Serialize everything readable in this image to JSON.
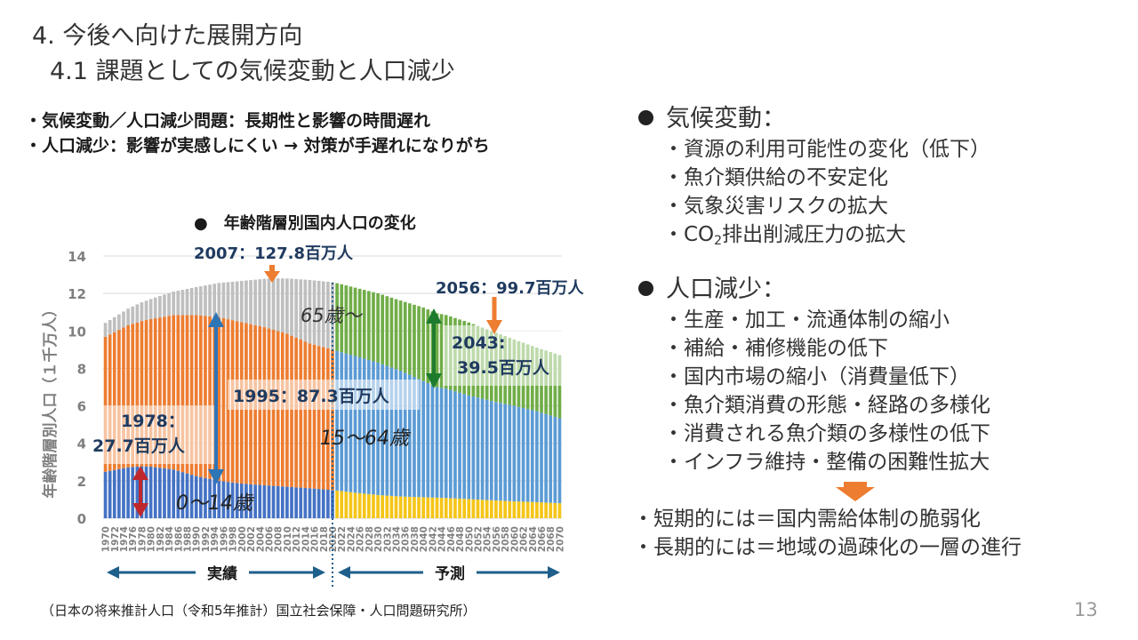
{
  "header": {
    "title": "4. 今後へ向けた展開方向",
    "subtitle": "4.1 課題としての気候変動と人口減少"
  },
  "left_bullets": [
    "・気候変動／人口減少問題：長期性と影響の時間遅れ",
    "・人口減少：影響が実感しにくい → 対策が手遅れになりがち"
  ],
  "chart_data": {
    "type": "bar",
    "stacked": true,
    "title": "●　年齢階層別国内人口の変化",
    "ylabel": "年齢階層別人口（１千万人）",
    "ylim": [
      0,
      14
    ],
    "yticks": [
      0,
      2,
      4,
      6,
      8,
      10,
      12,
      14
    ],
    "x_start": 1970,
    "x_end": 2070,
    "x_tick_step": 2,
    "projection_start": 2021,
    "colors": {
      "actual_0_14": "#4472c4",
      "actual_15_64": "#ed7d31",
      "actual_65": "#bfbfbf",
      "proj_0_14": "#f5c518",
      "proj_15_64": "#5b9bd5",
      "proj_65": "#70ad47",
      "arrow_red": "#c0282d",
      "arrow_blue": "#2e75b6",
      "arrow_green": "#1e7b2e",
      "arrow_orange": "#ed7d31",
      "period_arrow": "#1f5f8b"
    },
    "series_keys": [
      {
        "name": "0〜14歳",
        "points": [
          [
            1970,
            2.48
          ],
          [
            1975,
            2.72
          ],
          [
            1978,
            2.77
          ],
          [
            1980,
            2.75
          ],
          [
            1985,
            2.6
          ],
          [
            1990,
            2.25
          ],
          [
            1995,
            2.0
          ],
          [
            2000,
            1.85
          ],
          [
            2005,
            1.76
          ],
          [
            2010,
            1.68
          ],
          [
            2015,
            1.6
          ],
          [
            2020,
            1.5
          ],
          [
            2021,
            1.48
          ],
          [
            2025,
            1.36
          ],
          [
            2030,
            1.24
          ],
          [
            2035,
            1.16
          ],
          [
            2040,
            1.12
          ],
          [
            2045,
            1.08
          ],
          [
            2050,
            1.02
          ],
          [
            2055,
            0.96
          ],
          [
            2060,
            0.9
          ],
          [
            2065,
            0.86
          ],
          [
            2070,
            0.8
          ]
        ]
      },
      {
        "name": "15〜64歳",
        "points": [
          [
            1970,
            7.21
          ],
          [
            1975,
            7.58
          ],
          [
            1980,
            7.88
          ],
          [
            1985,
            8.25
          ],
          [
            1990,
            8.6
          ],
          [
            1995,
            8.73
          ],
          [
            2000,
            8.62
          ],
          [
            2005,
            8.44
          ],
          [
            2010,
            8.17
          ],
          [
            2015,
            7.73
          ],
          [
            2020,
            7.5
          ],
          [
            2021,
            7.45
          ],
          [
            2025,
            7.3
          ],
          [
            2030,
            7.07
          ],
          [
            2035,
            6.72
          ],
          [
            2040,
            6.2
          ],
          [
            2043,
            5.9
          ],
          [
            2045,
            5.84
          ],
          [
            2050,
            5.54
          ],
          [
            2055,
            5.3
          ],
          [
            2060,
            5.1
          ],
          [
            2065,
            4.85
          ],
          [
            2070,
            4.54
          ]
        ]
      },
      {
        "name": "65歳〜",
        "points": [
          [
            1970,
            0.74
          ],
          [
            1975,
            0.89
          ],
          [
            1980,
            1.07
          ],
          [
            1985,
            1.25
          ],
          [
            1990,
            1.49
          ],
          [
            1995,
            1.83
          ],
          [
            2000,
            2.2
          ],
          [
            2005,
            2.58
          ],
          [
            2007,
            2.75
          ],
          [
            2010,
            2.95
          ],
          [
            2015,
            3.39
          ],
          [
            2020,
            3.6
          ],
          [
            2021,
            3.62
          ],
          [
            2025,
            3.65
          ],
          [
            2030,
            3.7
          ],
          [
            2035,
            3.74
          ],
          [
            2040,
            3.93
          ],
          [
            2043,
            3.95
          ],
          [
            2045,
            3.93
          ],
          [
            2050,
            3.89
          ],
          [
            2055,
            3.74
          ],
          [
            2060,
            3.54
          ],
          [
            2065,
            3.4
          ],
          [
            2070,
            3.37
          ]
        ]
      }
    ],
    "annotations": {
      "a2007": "2007：127.8百万人",
      "a2056": "2056：99.7百万人",
      "a2043_line1": "2043:",
      "a2043_line2": "39.5百万人",
      "a1995": "1995：87.3百万人",
      "a1978_line1": "1978：",
      "a1978_line2": "27.7百万人",
      "lbl65": "65歳〜",
      "lbl1564": "15〜64歳",
      "lbl014": "0〜14歳"
    },
    "periods": {
      "actual": "実績",
      "forecast": "予測"
    }
  },
  "source": "（日本の将来推計人口（令和5年推計）国立社会保障・人口問題研究所）",
  "right_panel": {
    "climate_heading": "気候変動：",
    "climate_items": [
      "・資源の利用可能性の変化（低下）",
      "・魚介類供給の不安定化",
      "・気象災害リスクの拡大"
    ],
    "co2_prefix": "・CO",
    "co2_sub": "2",
    "co2_suffix": "排出削減圧力の拡大",
    "population_heading": "人口減少：",
    "population_items": [
      "・生産・加工・流通体制の縮小",
      "・補給・補修機能の低下",
      "・国内市場の縮小（消費量低下）",
      "・魚介類消費の形態・経路の多様化",
      "・消費される魚介類の多様性の低下",
      "・インフラ維持・整備の困難性拡大"
    ],
    "conclusions": [
      "・短期的には＝国内需給体制の脆弱化",
      "・長期的には＝地域の過疎化の一層の進行"
    ]
  },
  "page_number": "13"
}
